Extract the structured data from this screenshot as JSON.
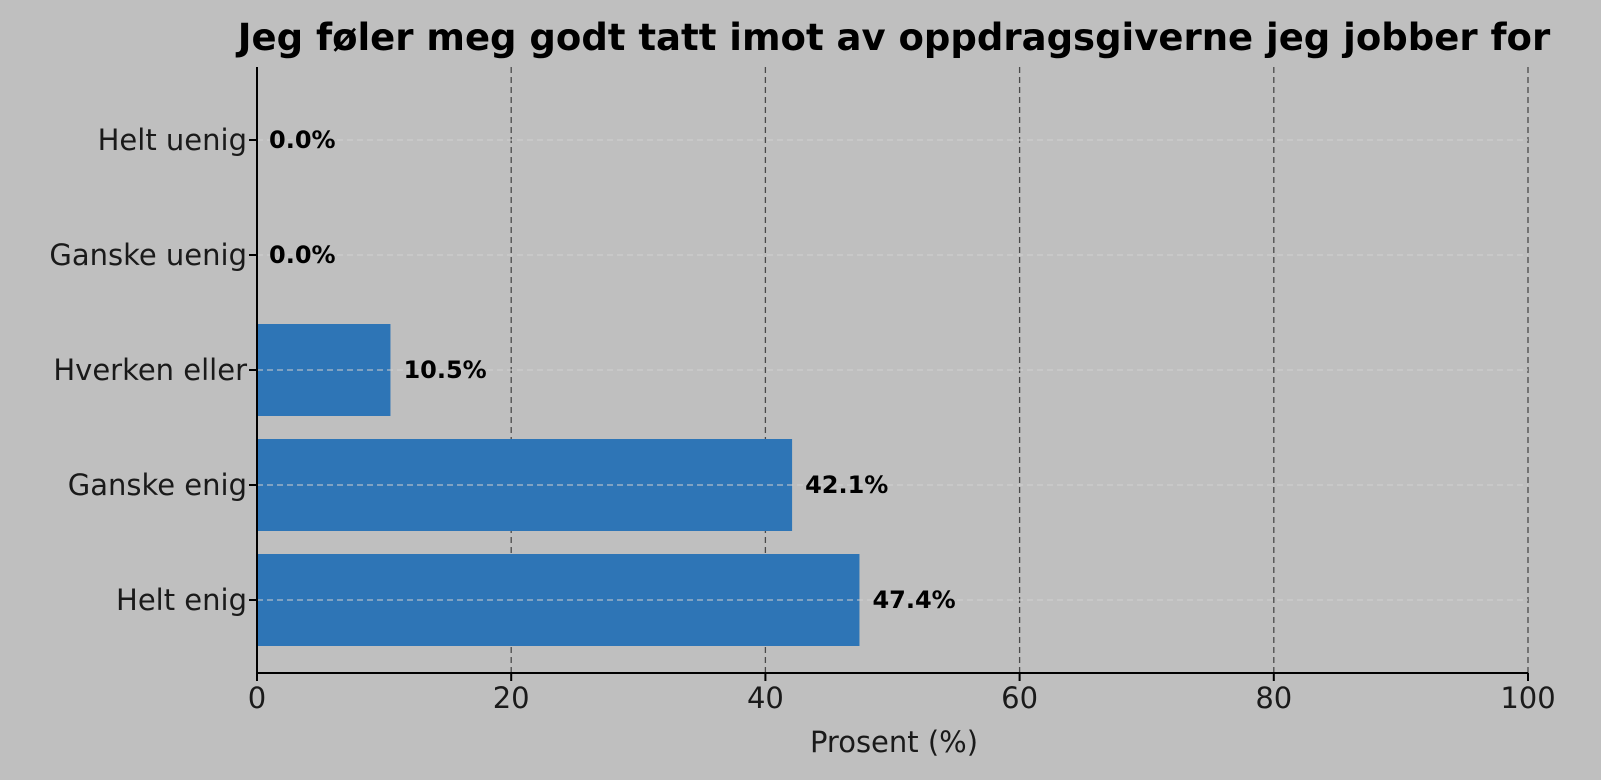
{
  "chart_data": {
    "type": "bar",
    "orientation": "horizontal",
    "title": "Jeg føler meg godt tatt imot av oppdragsgiverne jeg jobber for",
    "xlabel": "Prosent (%)",
    "ylabel": "",
    "xlim": [
      0,
      100
    ],
    "xticks": [
      0,
      20,
      40,
      60,
      80,
      100
    ],
    "tick_labels": [
      "0",
      "20",
      "40",
      "60",
      "80",
      "100"
    ],
    "categories": [
      "Helt uenig",
      "Ganske uenig",
      "Hverken eller",
      "Ganske enig",
      "Helt enig"
    ],
    "values": [
      0.0,
      0.0,
      10.5,
      42.1,
      47.4
    ],
    "value_labels": [
      "0.0%",
      "0.0%",
      "10.5%",
      "42.1%",
      "47.4%"
    ],
    "grid": true,
    "legend": "none",
    "colors": {
      "bar": "#2e75b6",
      "background": "#bfbfbf",
      "vertical_grid": "#4a4a4a",
      "horizontal_grid": "#d0d0d0",
      "axis": "#000000"
    }
  }
}
